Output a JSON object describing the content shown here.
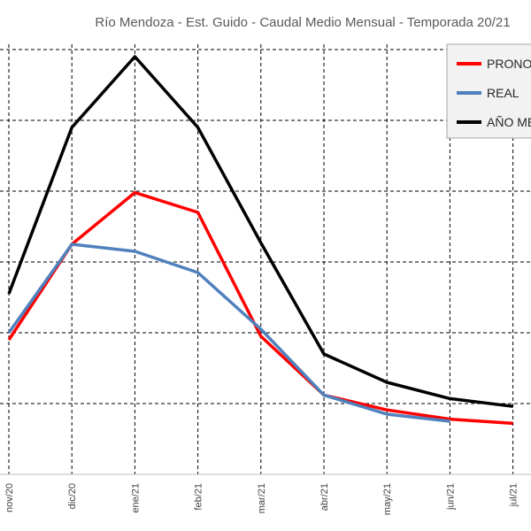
{
  "chart_data": {
    "type": "line",
    "title": "Río Mendoza - Est. Guido - Caudal Medio Mensual - Temporada 20/21",
    "categories": [
      "nov/20",
      "dic/20",
      "ene/21",
      "feb/21",
      "mar/21",
      "abr/21",
      "may/21",
      "jun/21",
      "jul/21"
    ],
    "xlabel": "",
    "ylabel": "",
    "ylim": [
      0,
      7
    ],
    "grid": true,
    "legend_position": "top-right",
    "series": [
      {
        "name": "PRONOSTICO",
        "color": "#ff0000",
        "values": [
          1.9,
          3.25,
          3.98,
          3.7,
          1.95,
          1.12,
          0.91,
          0.78,
          0.72
        ]
      },
      {
        "name": "REAL",
        "color": "#4f81bd",
        "values": [
          2.0,
          3.25,
          3.15,
          2.85,
          2.05,
          1.12,
          0.85,
          0.75,
          null
        ]
      },
      {
        "name": "AÑO MEDIO",
        "color": "#000000",
        "values": [
          2.55,
          4.9,
          5.9,
          4.9,
          3.27,
          1.7,
          1.3,
          1.07,
          0.96
        ]
      }
    ]
  }
}
